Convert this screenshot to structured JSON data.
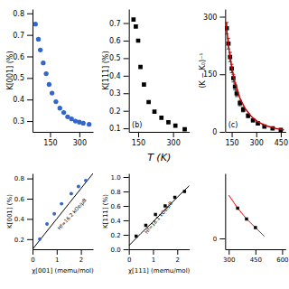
{
  "chart_data": [
    {
      "type": "scatter",
      "ylabel": "K[001] (%)",
      "xlim": [
        60,
        370
      ],
      "ylim": [
        0.25,
        0.82
      ],
      "xticks": [
        150,
        300
      ],
      "yticks": [
        0.3,
        0.4,
        0.5,
        0.6,
        0.7,
        0.8
      ],
      "grid": false,
      "series": [
        {
          "type": "scatter",
          "marker": "circle",
          "color": "#3366cc",
          "x": [
            75,
            90,
            100,
            115,
            130,
            145,
            160,
            180,
            200,
            220,
            240,
            260,
            280,
            300,
            320,
            350
          ],
          "values": [
            0.75,
            0.68,
            0.63,
            0.57,
            0.52,
            0.47,
            0.43,
            0.39,
            0.36,
            0.34,
            0.32,
            0.31,
            0.3,
            0.295,
            0.29,
            0.285
          ]
        }
      ]
    },
    {
      "type": "scatter",
      "xlabel": "χ[001] (memu/mol)",
      "ylabel": "K[001] (%)",
      "annotation": "Hf=16.2 kOe/μB",
      "xlim": [
        0,
        2.5
      ],
      "ylim": [
        0.1,
        0.85
      ],
      "xticks": [
        0,
        1,
        2
      ],
      "yticks": [
        0.2,
        0.4,
        0.6,
        0.8
      ],
      "grid": false,
      "series": [
        {
          "type": "line",
          "line_style": "solid",
          "color": "black",
          "x": [
            0,
            0.5,
            1.0,
            1.5,
            2.0,
            2.5
          ],
          "values": [
            0.1,
            0.25,
            0.4,
            0.55,
            0.7,
            0.85
          ]
        },
        {
          "type": "scatter",
          "marker": "circle",
          "color": "#3366cc",
          "x": [
            0.3,
            0.6,
            0.9,
            1.2,
            1.6,
            1.9,
            2.2
          ],
          "values": [
            0.2,
            0.35,
            0.45,
            0.55,
            0.65,
            0.72,
            0.78
          ]
        }
      ]
    },
    {
      "type": "scatter",
      "xlabel": "T (K)",
      "ylabel": "K[111] (%)",
      "annotation": "(b)",
      "xlim": [
        110,
        370
      ],
      "ylim": [
        0.08,
        0.78
      ],
      "xticks": [
        150,
        300
      ],
      "yticks": [
        0.1,
        0.2,
        0.3,
        0.4,
        0.5,
        0.6,
        0.7
      ],
      "grid": false,
      "series": [
        {
          "type": "scatter",
          "marker": "square",
          "color": "black",
          "x": [
            130,
            140,
            150,
            160,
            175,
            195,
            220,
            250,
            280,
            310,
            350
          ],
          "values": [
            0.72,
            0.68,
            0.6,
            0.45,
            0.35,
            0.25,
            0.195,
            0.16,
            0.135,
            0.115,
            0.095
          ]
        }
      ]
    },
    {
      "type": "scatter",
      "xlabel": "χ[111] (memu/mol)",
      "ylabel": "K[111] (%)",
      "annotation": "Hf=18.1 kOe/μB",
      "xlim": [
        0,
        2.5
      ],
      "ylim": [
        0,
        1.05
      ],
      "xticks": [
        0,
        1,
        2
      ],
      "yticks": [
        {
          "value": 0,
          "label": "0.0"
        },
        0.2,
        0.4,
        0.6,
        0.8,
        {
          "value": 1,
          "label": "1.0"
        }
      ],
      "grid": false,
      "series": [
        {
          "type": "line",
          "line_style": "solid",
          "color": "black",
          "x": [
            0,
            0.5,
            1.0,
            1.5,
            2.0,
            2.5
          ],
          "values": [
            0.05,
            0.22,
            0.38,
            0.55,
            0.72,
            0.88
          ]
        },
        {
          "type": "scatter",
          "marker": "square",
          "color": "black",
          "x": [
            0.3,
            0.7,
            1.1,
            1.5,
            1.9,
            2.3
          ],
          "values": [
            0.18,
            0.33,
            0.48,
            0.6,
            0.72,
            0.8
          ]
        }
      ]
    },
    {
      "type": "scatter",
      "ylabel": "(K − K₀)⁻¹",
      "annotation": "(c)",
      "xlim": [
        110,
        480
      ],
      "ylim": [
        0,
        320
      ],
      "xticks": [
        150,
        300,
        450
      ],
      "yticks": [
        0,
        150,
        300
      ],
      "grid": false,
      "series": [
        {
          "type": "scatter",
          "marker": "square",
          "color": "black",
          "x": [
            120,
            130,
            140,
            150,
            160,
            170,
            180,
            200,
            220,
            250,
            280,
            310,
            350,
            400,
            450
          ],
          "values": [
            270,
            230,
            195,
            165,
            140,
            118,
            100,
            75,
            58,
            42,
            30,
            22,
            14,
            9,
            5
          ],
          "errors": [
            15,
            14,
            12,
            11,
            10,
            9,
            8,
            7,
            6,
            5,
            4,
            4,
            3,
            3,
            3
          ]
        },
        {
          "type": "line",
          "line_style": "solid",
          "color": "#cc0000",
          "x": [
            115,
            130,
            150,
            170,
            200,
            230,
            270,
            310,
            360,
            420,
            470
          ],
          "values": [
            285,
            225,
            168,
            128,
            88,
            62,
            40,
            26,
            16,
            9,
            5
          ]
        }
      ]
    },
    {
      "type": "scatter",
      "xlim": [
        280,
        620
      ],
      "ylim": [
        -5,
        30
      ],
      "xticks": [
        300,
        450,
        600
      ],
      "yticks": [
        0
      ],
      "grid": false,
      "series": [
        {
          "type": "line",
          "line_style": "solid",
          "color": "red",
          "x": [
            300,
            350,
            400,
            450,
            500
          ],
          "values": [
            20,
            14,
            9,
            5,
            1
          ]
        },
        {
          "type": "scatter",
          "marker": "square",
          "color": "black",
          "x": [
            350,
            400,
            450
          ],
          "values": [
            14,
            9,
            5
          ]
        }
      ]
    }
  ]
}
